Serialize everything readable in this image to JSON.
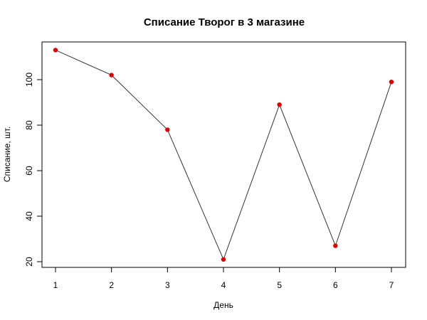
{
  "chart_data": {
    "type": "line",
    "title": "Списание Творог в 3 магазине",
    "xlabel": "День",
    "ylabel": "Списание, шт.",
    "x": [
      1,
      2,
      3,
      4,
      5,
      6,
      7
    ],
    "values": [
      113,
      102,
      78,
      21,
      89,
      27,
      99
    ],
    "xticks": [
      "1",
      "2",
      "3",
      "4",
      "5",
      "6",
      "7"
    ],
    "yticks": [
      "20",
      "40",
      "60",
      "80",
      "100"
    ],
    "xlim": [
      1,
      7
    ],
    "ylim": [
      20,
      113
    ],
    "grid": false,
    "line_color": "#333333",
    "point_color": "#e00000"
  }
}
